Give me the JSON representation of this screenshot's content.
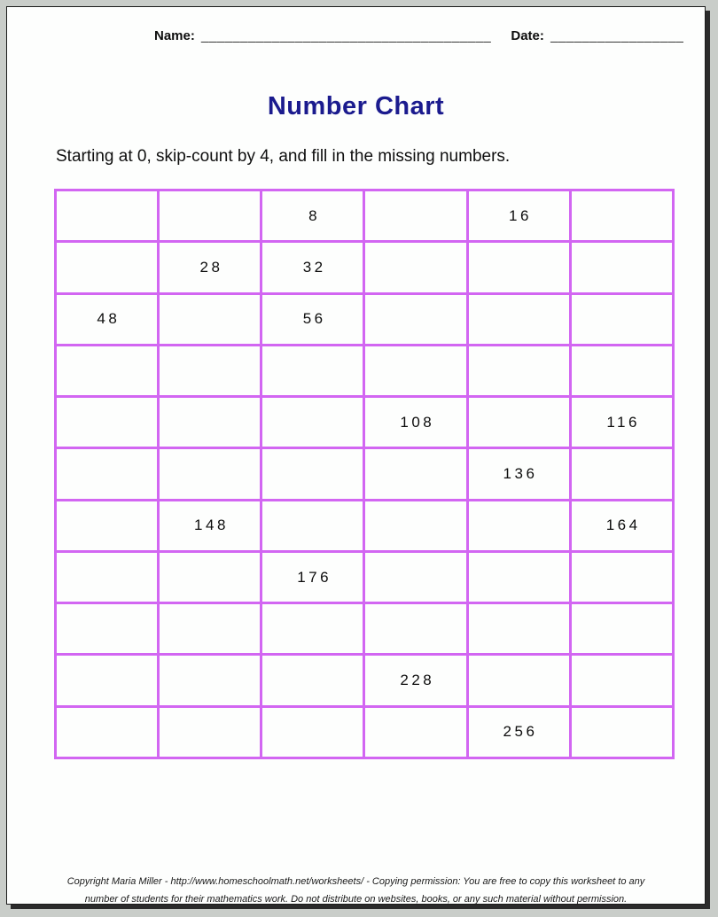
{
  "header": {
    "name_label": "Name:",
    "name_line": "_____________________________________",
    "date_label": "Date:",
    "date_line": "_________________"
  },
  "title": "Number Chart",
  "instruction": "Starting at 0, skip-count by 4, and fill in the missing numbers.",
  "grid": {
    "columns": 6,
    "row_count": 11,
    "starting_at": 0,
    "skip_count_by": 4,
    "rows": [
      [
        "",
        "",
        "8",
        "",
        "16",
        ""
      ],
      [
        "",
        "28",
        "32",
        "",
        "",
        ""
      ],
      [
        "48",
        "",
        "56",
        "",
        "",
        ""
      ],
      [
        "",
        "",
        "",
        "",
        "",
        ""
      ],
      [
        "",
        "",
        "",
        "108",
        "",
        "116"
      ],
      [
        "",
        "",
        "",
        "",
        "136",
        ""
      ],
      [
        "",
        "148",
        "",
        "",
        "",
        "164"
      ],
      [
        "",
        "",
        "176",
        "",
        "",
        ""
      ],
      [
        "",
        "",
        "",
        "",
        "",
        ""
      ],
      [
        "",
        "",
        "",
        "228",
        "",
        ""
      ],
      [
        "",
        "",
        "",
        "",
        "256",
        ""
      ]
    ]
  },
  "footer": {
    "line1": "Copyright Maria Miller - http://www.homeschoolmath.net/worksheets/ - Copying permission: You are free to copy this worksheet to any",
    "line2": "number of students for their mathematics work. Do not distribute on websites, books, or any such material without permission."
  },
  "colors": {
    "grid_line": "#d266f2",
    "title": "#1b1b8e",
    "page_bg": "#fdfefd",
    "frame_bg": "#c9cdc9",
    "text": "#111111"
  }
}
